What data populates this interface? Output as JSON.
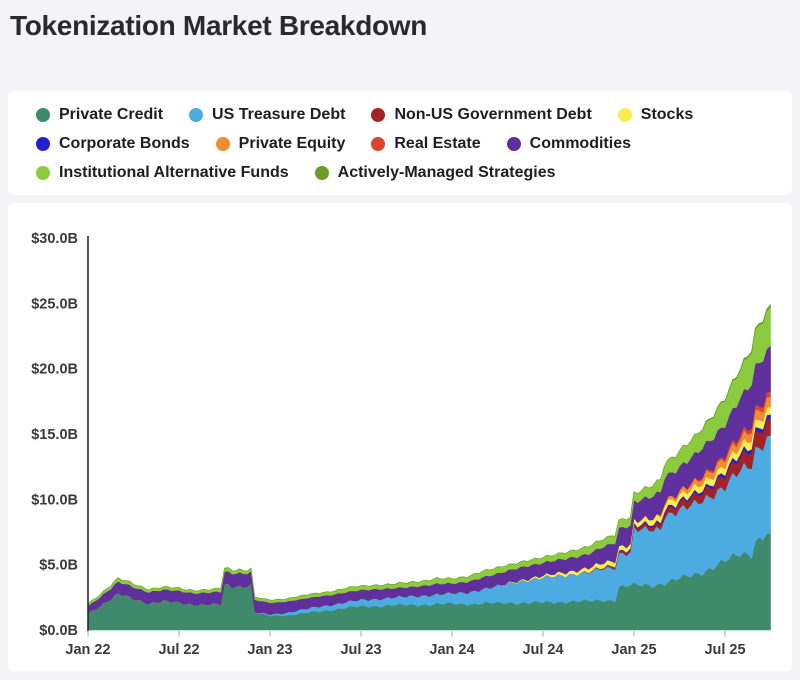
{
  "title": "Tokenization Market Breakdown",
  "colors": {
    "page_bg": "#f4f4f6",
    "card_bg": "#ffffff",
    "title_text": "#2a2a2e",
    "legend_text": "#1e1e22",
    "axis_text": "#3a3a3e",
    "axis_line": "#2b2b2f",
    "tick_mark": "#b9b9bd"
  },
  "legend": {
    "rows": [
      [
        0,
        1,
        2,
        4
      ],
      [
        3,
        5,
        6,
        7
      ],
      [
        8,
        9
      ]
    ]
  },
  "chart_data": {
    "type": "area",
    "stacked": true,
    "title": "Tokenization Market Breakdown",
    "unit": "USD billions",
    "grid": false,
    "legend_position": "top",
    "x_start": "Jan 2022",
    "x_end": "Oct 2025",
    "x_interval": "monthly",
    "x_tick_labels": [
      "Jan 22",
      "Jul 22",
      "Jan 23",
      "Jul 23",
      "Jan 24",
      "Jul 24",
      "Jan 25",
      "Jul 25"
    ],
    "y_tick_values": [
      0,
      5,
      10,
      15,
      20,
      25,
      30
    ],
    "y_tick_labels": [
      "$0.0B",
      "$5.0B",
      "$10.0B",
      "$15.0B",
      "$20.0B",
      "$25.0B",
      "$30.0B"
    ],
    "ylim": [
      0,
      30
    ],
    "series": [
      {
        "name": "Private Credit",
        "color": "#3e8a6a",
        "values": [
          1.3,
          2.05,
          2.75,
          2.4,
          2.1,
          2.2,
          2.1,
          2.0,
          1.95,
          3.45,
          3.4,
          1.3,
          1.1,
          1.15,
          1.25,
          1.4,
          1.55,
          1.7,
          1.8,
          1.85,
          1.9,
          1.9,
          1.95,
          2.0,
          2.0,
          2.0,
          2.05,
          2.05,
          2.1,
          2.1,
          2.1,
          2.15,
          2.2,
          2.2,
          2.3,
          3.3,
          3.4,
          3.45,
          3.6,
          3.9,
          4.3,
          4.7,
          5.2,
          5.9,
          6.8,
          7.4
        ]
      },
      {
        "name": "US Treasure Debt",
        "color": "#4cabe0",
        "values": [
          0,
          0,
          0,
          0,
          0,
          0,
          0,
          0,
          0,
          0,
          0,
          0.05,
          0.1,
          0.18,
          0.3,
          0.35,
          0.4,
          0.45,
          0.5,
          0.55,
          0.6,
          0.65,
          0.7,
          0.75,
          0.8,
          0.9,
          1.1,
          1.3,
          1.55,
          1.75,
          1.9,
          2.0,
          2.1,
          2.2,
          2.4,
          2.55,
          4.3,
          4.2,
          5.2,
          5.3,
          5.3,
          5.6,
          5.8,
          6.3,
          7.0,
          7.5
        ]
      },
      {
        "name": "Non-US Government Debt",
        "color": "#a42125",
        "values": [
          0,
          0,
          0,
          0,
          0,
          0,
          0,
          0,
          0,
          0,
          0,
          0,
          0,
          0,
          0,
          0,
          0,
          0,
          0,
          0,
          0,
          0,
          0,
          0,
          0,
          0,
          0,
          0,
          0,
          0,
          0,
          0,
          0,
          0.05,
          0.1,
          0.15,
          0.2,
          0.3,
          0.4,
          0.5,
          0.6,
          0.7,
          0.9,
          1.0,
          1.2,
          1.3
        ]
      },
      {
        "name": "Corporate Bonds",
        "color": "#2023cf",
        "values": [
          0,
          0,
          0,
          0,
          0,
          0,
          0,
          0,
          0,
          0,
          0,
          0,
          0,
          0,
          0,
          0,
          0,
          0,
          0,
          0,
          0,
          0,
          0,
          0,
          0,
          0,
          0,
          0,
          0,
          0,
          0,
          0,
          0,
          0,
          0,
          0.05,
          0.1,
          0.12,
          0.15,
          0.15,
          0.18,
          0.2,
          0.25,
          0.25,
          0.3,
          0.3
        ]
      },
      {
        "name": "Stocks",
        "color": "#f8ee51",
        "values": [
          0,
          0,
          0,
          0,
          0,
          0,
          0,
          0,
          0,
          0,
          0,
          0,
          0,
          0,
          0,
          0,
          0,
          0,
          0,
          0,
          0,
          0,
          0,
          0,
          0,
          0,
          0,
          0,
          0.05,
          0.1,
          0.15,
          0.2,
          0.25,
          0.3,
          0.35,
          0.35,
          0.35,
          0.4,
          0.4,
          0.45,
          0.45,
          0.5,
          0.5,
          0.55,
          0.6,
          0.6
        ]
      },
      {
        "name": "Private Equity",
        "color": "#f08c33",
        "values": [
          0,
          0,
          0,
          0,
          0,
          0,
          0,
          0,
          0,
          0,
          0,
          0,
          0,
          0,
          0,
          0,
          0,
          0,
          0,
          0,
          0,
          0,
          0,
          0,
          0,
          0,
          0,
          0,
          0,
          0,
          0,
          0,
          0,
          0,
          0,
          0,
          0,
          0,
          0.2,
          0.3,
          0.4,
          0.5,
          0.55,
          0.6,
          0.7,
          0.75
        ]
      },
      {
        "name": "Real Estate",
        "color": "#d9452c",
        "values": [
          0,
          0,
          0,
          0,
          0,
          0,
          0,
          0,
          0,
          0,
          0,
          0,
          0,
          0,
          0,
          0,
          0,
          0,
          0,
          0,
          0,
          0,
          0,
          0,
          0,
          0,
          0,
          0,
          0,
          0,
          0,
          0,
          0,
          0,
          0,
          0,
          0,
          0,
          0,
          0,
          0.1,
          0.15,
          0.2,
          0.3,
          0.35,
          0.4
        ]
      },
      {
        "name": "Commodities",
        "color": "#5e2f9d",
        "values": [
          0.55,
          0.7,
          0.9,
          0.9,
          0.85,
          0.85,
          0.9,
          0.85,
          0.9,
          1.0,
          1.0,
          0.95,
          0.9,
          0.85,
          0.8,
          0.8,
          0.75,
          0.75,
          0.75,
          0.75,
          0.7,
          0.7,
          0.75,
          0.8,
          0.75,
          0.8,
          0.9,
          0.95,
          0.95,
          1.0,
          1.0,
          1.0,
          1.05,
          1.1,
          1.2,
          1.4,
          1.5,
          1.6,
          1.8,
          1.9,
          2.0,
          2.2,
          2.4,
          2.8,
          3.2,
          3.5
        ]
      },
      {
        "name": "Institutional Alternative Funds",
        "color": "#8ccb3e",
        "values": [
          0.15,
          0.2,
          0.25,
          0.25,
          0.2,
          0.2,
          0.2,
          0.2,
          0.2,
          0.25,
          0.25,
          0.2,
          0.2,
          0.2,
          0.25,
          0.25,
          0.25,
          0.3,
          0.3,
          0.3,
          0.3,
          0.35,
          0.35,
          0.4,
          0.35,
          0.4,
          0.45,
          0.45,
          0.4,
          0.4,
          0.4,
          0.45,
          0.5,
          0.55,
          0.6,
          0.6,
          0.6,
          0.8,
          1.0,
          1.2,
          1.4,
          1.6,
          1.9,
          2.2,
          2.7,
          3.0
        ]
      },
      {
        "name": "Actively-Managed Strategies",
        "color": "#6d9b27",
        "values": [
          0,
          0,
          0,
          0,
          0,
          0,
          0,
          0,
          0,
          0,
          0,
          0,
          0,
          0,
          0,
          0,
          0,
          0,
          0,
          0,
          0,
          0,
          0,
          0,
          0,
          0,
          0,
          0,
          0,
          0,
          0,
          0,
          0,
          0,
          0,
          0,
          0,
          0,
          0,
          0,
          0,
          0.05,
          0.05,
          0.1,
          0.1,
          0.15
        ]
      }
    ]
  }
}
